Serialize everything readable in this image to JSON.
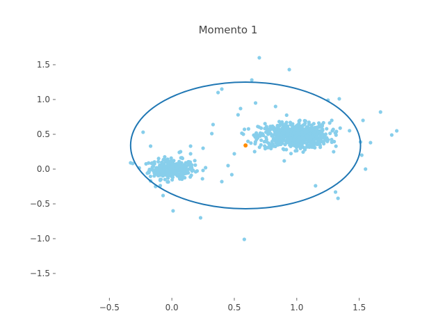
{
  "chart_data": {
    "type": "scatter",
    "title": "Momento 1",
    "xlabel": "",
    "ylabel": "",
    "xlim": [
      -0.93,
      1.83
    ],
    "ylim": [
      -1.85,
      1.85
    ],
    "x_ticks": [
      -0.5,
      0.0,
      0.5,
      1.0,
      1.5
    ],
    "y_ticks": [
      -1.5,
      -1.0,
      -0.5,
      0.0,
      0.5,
      1.0,
      1.5
    ],
    "x_tick_labels": [
      "−0.5",
      "0.0",
      "0.5",
      "1.0",
      "1.5"
    ],
    "y_tick_labels": [
      "−1.5",
      "−1.0",
      "−0.5",
      "0.0",
      "0.5",
      "1.0",
      "1.5"
    ],
    "grid": false,
    "colors": {
      "points": "#87ceeb",
      "center": "#ff8c00",
      "ellipse": "#1f77b4",
      "text": "#444444"
    },
    "series": [
      {
        "role": "cluster-a",
        "center": [
          0.0,
          0.0
        ],
        "spread": [
          0.09,
          0.07
        ],
        "count": 300
      },
      {
        "role": "cluster-b",
        "center": [
          0.98,
          0.48
        ],
        "spread": [
          0.14,
          0.09
        ],
        "count": 700
      },
      {
        "role": "scattered-points",
        "x": [
          0.7,
          0.94,
          0.64,
          0.4,
          0.37,
          1.34,
          1.25,
          1.67,
          1.8,
          1.76,
          1.59,
          1.53,
          1.52,
          1.55,
          1.51,
          -0.23,
          -0.33,
          -0.17,
          0.06,
          0.07,
          0.15,
          0.27,
          0.4,
          0.33,
          0.5,
          0.55,
          0.53,
          0.67,
          1.15,
          1.31,
          1.33,
          -0.13,
          0.23,
          0.01,
          0.58,
          0.32,
          0.25,
          0.15,
          -0.07,
          -0.17,
          0.83,
          0.77,
          1.28,
          0.45,
          0.48
        ],
        "y": [
          1.6,
          1.43,
          1.28,
          1.15,
          1.1,
          1.01,
          0.99,
          0.82,
          0.55,
          0.49,
          0.38,
          0.7,
          0.2,
          0.0,
          0.39,
          0.53,
          0.09,
          0.33,
          0.24,
          0.25,
          0.22,
          0.02,
          -0.18,
          0.64,
          0.22,
          0.87,
          0.78,
          0.95,
          -0.24,
          -0.33,
          -0.42,
          -0.25,
          -0.7,
          -0.6,
          -1.01,
          0.51,
          0.3,
          0.33,
          -0.38,
          -0.17,
          0.9,
          0.55,
          0.7,
          0.05,
          -0.08
        ]
      }
    ],
    "center_point": {
      "x": 0.59,
      "y": 0.34
    },
    "ellipse": {
      "cx": 0.59,
      "cy": 0.34,
      "rx": 0.92,
      "ry": 0.91
    }
  }
}
